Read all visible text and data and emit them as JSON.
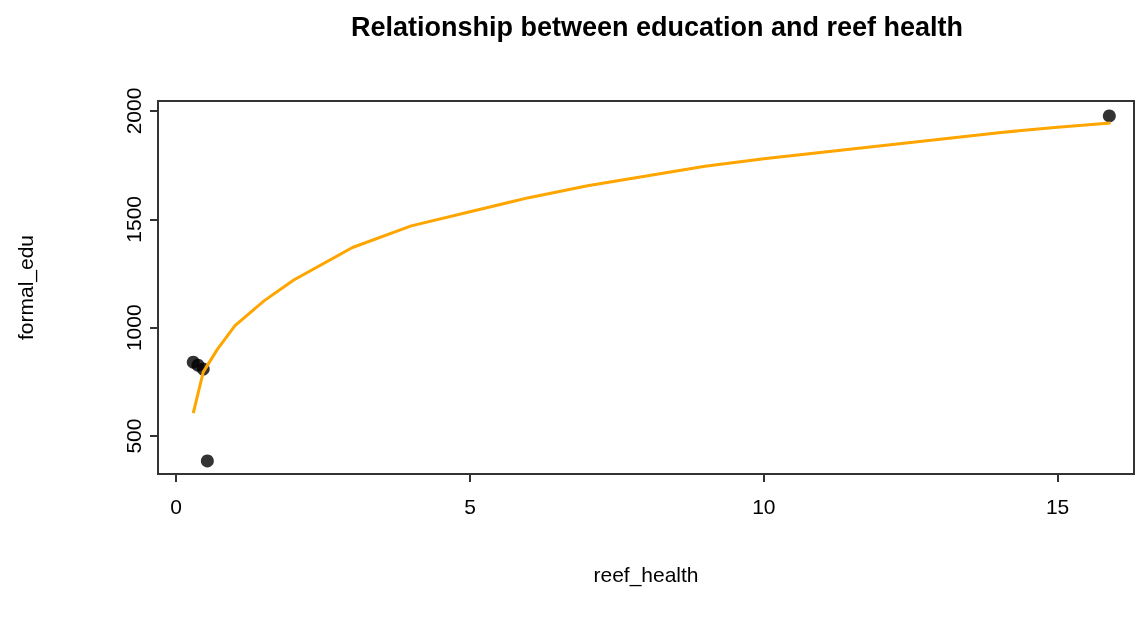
{
  "chart_data": {
    "type": "scatter",
    "title": "Relationship between education and reef health",
    "xlabel": "reef_health",
    "ylabel": "formal_edu",
    "xlim": [
      -0.31,
      16.3
    ],
    "ylim": [
      325,
      2046
    ],
    "xticks": [
      0,
      5,
      10,
      15
    ],
    "yticks": [
      500,
      1000,
      1500,
      2000
    ],
    "marker": "circle",
    "series": [
      {
        "color": "#000000",
        "x": [
          0.29,
          0.37,
          0.46,
          0.53,
          15.88
        ],
        "values": [
          841,
          827,
          809,
          385,
          1977
        ]
      },
      {
        "type": "line",
        "color": "#ffa500",
        "marker": "none",
        "x": [
          0.29,
          0.46,
          0.7,
          1,
          1.5,
          2,
          3,
          4,
          5,
          6,
          7,
          8,
          9,
          10,
          11,
          12,
          13,
          14,
          15,
          15.9
        ],
        "values": [
          606,
          795,
          900,
          1010,
          1125,
          1220,
          1370,
          1470,
          1535,
          1600,
          1655,
          1700,
          1745,
          1780,
          1810,
          1840,
          1870,
          1900,
          1925,
          1944
        ]
      }
    ]
  }
}
